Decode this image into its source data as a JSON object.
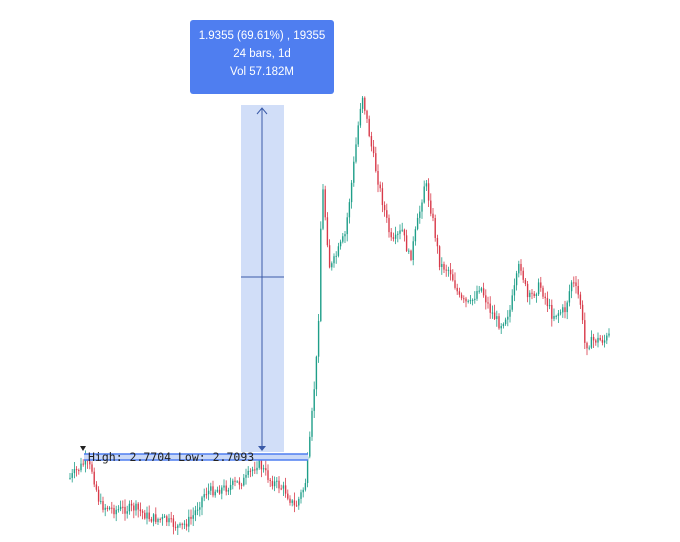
{
  "measure_tooltip": {
    "line1": "1.9355 (69.61%) , 19355",
    "line2": "24 bars, 1d",
    "line3": "Vol 57.182M"
  },
  "high_low_label": "High: 2.7704  Low: 2.7093",
  "colors": {
    "up": "#1f9e89",
    "down": "#d83a4a",
    "measure_fill": "#c9d8f7",
    "measure_line": "#3a5aa8",
    "tooltip_bg": "#4f7ef0",
    "hilo_line": "#4f7ef0"
  },
  "chart_data": {
    "type": "candlestick",
    "measure": {
      "change": 1.9355,
      "change_pct": 69.61,
      "ticks": 19355,
      "bars": 24,
      "interval": "1d",
      "volume": "57.182M"
    },
    "high_low_range": {
      "high": 2.7704,
      "low": 2.7093
    }
  }
}
